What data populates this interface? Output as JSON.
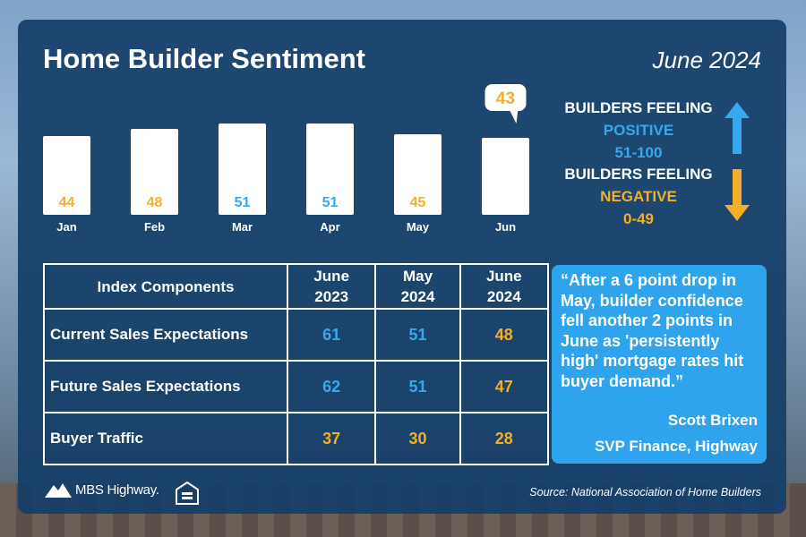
{
  "header": {
    "title": "Home Builder Sentiment",
    "date": "June 2024"
  },
  "chart_data": {
    "type": "bar",
    "categories": [
      "Jan",
      "Feb",
      "Mar",
      "Apr",
      "May",
      "Jun"
    ],
    "values": [
      44,
      48,
      51,
      51,
      45,
      43
    ],
    "value_labels": [
      "44",
      "48",
      "51",
      "51",
      "45",
      "43"
    ],
    "highlight_index": 5,
    "positive_color": "#37a8ee",
    "negative_color": "#f5ae27",
    "bar_color": "#ffffff",
    "ylim": [
      0,
      60
    ]
  },
  "legend": {
    "positive": {
      "line1": "BUILDERS FEELING",
      "line2": "POSITIVE",
      "line3": "51-100"
    },
    "negative": {
      "line1": "BUILDERS FEELING",
      "line2": "NEGATIVE",
      "line3": "0-49"
    }
  },
  "table": {
    "headers": [
      {
        "line1": "Index Components",
        "line2": ""
      },
      {
        "line1": "June",
        "line2": "2023"
      },
      {
        "line1": "May",
        "line2": "2024"
      },
      {
        "line1": "June",
        "line2": "2024"
      }
    ],
    "rows": [
      {
        "label": "Current Sales Expectations",
        "values": [
          "61",
          "51",
          "48"
        ],
        "colors": [
          "#37a8ee",
          "#37a8ee",
          "#f5ae27"
        ]
      },
      {
        "label": "Future Sales Expectations",
        "values": [
          "62",
          "51",
          "47"
        ],
        "colors": [
          "#37a8ee",
          "#37a8ee",
          "#f5ae27"
        ]
      },
      {
        "label": "Buyer Traffic",
        "values": [
          "37",
          "30",
          "28"
        ],
        "colors": [
          "#f5ae27",
          "#f5ae27",
          "#f5ae27"
        ]
      }
    ]
  },
  "quote": {
    "text": "“After a 6 point drop in May, builder confidence fell another 2 points in June as 'persistently high' mortgage rates hit buyer demand.”",
    "name": "Scott Brixen",
    "role": "SVP Finance, Highway"
  },
  "footer": {
    "logo_text": "MBS Highway.",
    "eho_icon": "equal-housing-opportunity-icon",
    "source": "Source: National Association of Home Builders"
  }
}
